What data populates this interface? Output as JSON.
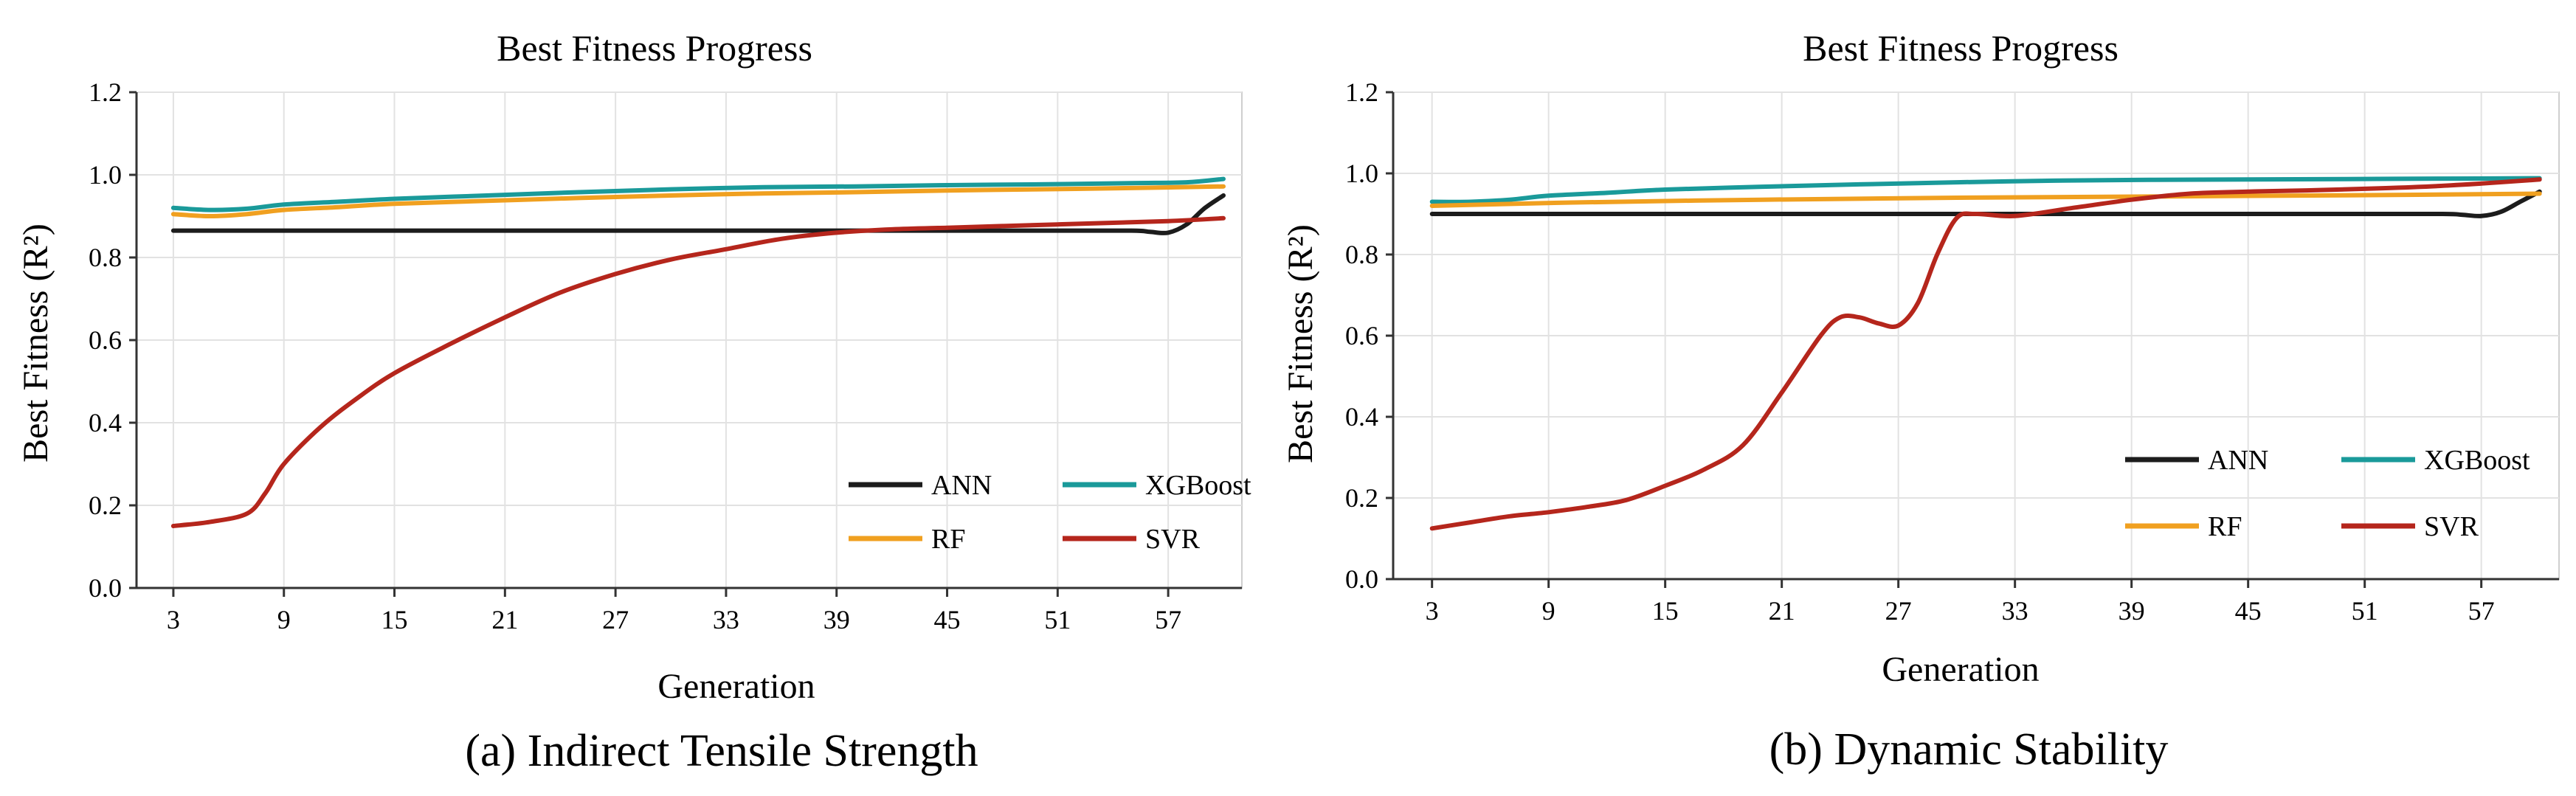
{
  "chart_data": [
    {
      "type": "line",
      "title": "Best Fitness Progress",
      "caption": "(a) Indirect Tensile Strength",
      "xlabel": "Generation",
      "ylabel": "Best Fitness (R²)",
      "xlim": [
        1,
        61
      ],
      "ylim": [
        0,
        1.2
      ],
      "xticks": [
        "3",
        "9",
        "15",
        "21",
        "27",
        "33",
        "39",
        "45",
        "51",
        "57"
      ],
      "yticks": [
        "0.0",
        "0.2",
        "0.4",
        "0.6",
        "0.8",
        "1.0",
        "1.2"
      ],
      "grid": true,
      "legend_position": "bottom-right",
      "series": [
        {
          "name": "ANN",
          "color": "#1c1c1c",
          "x": [
            3,
            10,
            20,
            30,
            40,
            50,
            55,
            56,
            57,
            58,
            59,
            60
          ],
          "y": [
            0.865,
            0.865,
            0.865,
            0.865,
            0.865,
            0.865,
            0.865,
            0.862,
            0.86,
            0.88,
            0.92,
            0.95
          ]
        },
        {
          "name": "XGBoost",
          "color": "#1a9a9a",
          "x": [
            3,
            5,
            7,
            9,
            12,
            15,
            20,
            25,
            30,
            35,
            40,
            45,
            50,
            55,
            58,
            60
          ],
          "y": [
            0.92,
            0.915,
            0.918,
            0.928,
            0.935,
            0.942,
            0.95,
            0.958,
            0.965,
            0.97,
            0.972,
            0.975,
            0.977,
            0.98,
            0.982,
            0.99
          ]
        },
        {
          "name": "RF",
          "color": "#f0a020",
          "x": [
            3,
            5,
            7,
            9,
            12,
            15,
            20,
            25,
            30,
            35,
            40,
            45,
            50,
            55,
            60
          ],
          "y": [
            0.905,
            0.9,
            0.905,
            0.915,
            0.922,
            0.93,
            0.937,
            0.944,
            0.95,
            0.955,
            0.958,
            0.962,
            0.965,
            0.968,
            0.972
          ]
        },
        {
          "name": "SVR",
          "color": "#b5261c",
          "x": [
            3,
            5,
            7,
            8,
            9,
            11,
            13,
            15,
            18,
            21,
            24,
            27,
            30,
            33,
            36,
            39,
            42,
            45,
            48,
            51,
            54,
            57,
            60
          ],
          "y": [
            0.15,
            0.16,
            0.18,
            0.23,
            0.3,
            0.39,
            0.46,
            0.52,
            0.59,
            0.655,
            0.715,
            0.76,
            0.795,
            0.82,
            0.845,
            0.86,
            0.868,
            0.872,
            0.876,
            0.88,
            0.884,
            0.888,
            0.895
          ]
        }
      ]
    },
    {
      "type": "line",
      "title": "Best Fitness Progress",
      "caption": "(b) Dynamic Stability",
      "xlabel": "Generation",
      "ylabel": "Best Fitness (R²)",
      "xlim": [
        1,
        61
      ],
      "ylim": [
        0,
        1.2
      ],
      "xticks": [
        "3",
        "9",
        "15",
        "21",
        "27",
        "33",
        "39",
        "45",
        "51",
        "57"
      ],
      "yticks": [
        "0.0",
        "0.2",
        "0.4",
        "0.6",
        "0.8",
        "1.0",
        "1.2"
      ],
      "grid": true,
      "legend_position": "bottom-right",
      "series": [
        {
          "name": "ANN",
          "color": "#1c1c1c",
          "x": [
            3,
            10,
            20,
            30,
            40,
            50,
            55,
            56,
            57,
            58,
            59,
            60
          ],
          "y": [
            0.9,
            0.9,
            0.9,
            0.9,
            0.9,
            0.9,
            0.9,
            0.898,
            0.895,
            0.905,
            0.93,
            0.955
          ]
        },
        {
          "name": "XGBoost",
          "color": "#1a9a9a",
          "x": [
            3,
            5,
            7,
            9,
            12,
            15,
            20,
            25,
            30,
            35,
            40,
            45,
            50,
            55,
            60
          ],
          "y": [
            0.93,
            0.93,
            0.935,
            0.945,
            0.952,
            0.96,
            0.967,
            0.973,
            0.978,
            0.982,
            0.984,
            0.985,
            0.986,
            0.987,
            0.988
          ]
        },
        {
          "name": "RF",
          "color": "#f0a020",
          "x": [
            3,
            10,
            20,
            30,
            40,
            50,
            60
          ],
          "y": [
            0.92,
            0.928,
            0.935,
            0.94,
            0.943,
            0.946,
            0.95
          ]
        },
        {
          "name": "SVR",
          "color": "#b5261c",
          "x": [
            3,
            5,
            7,
            9,
            11,
            13,
            15,
            17,
            19,
            21,
            23,
            24,
            25,
            26,
            27,
            28,
            29,
            30,
            31,
            33,
            36,
            39,
            42,
            45,
            48,
            51,
            54,
            57,
            60
          ],
          "y": [
            0.125,
            0.14,
            0.155,
            0.165,
            0.178,
            0.195,
            0.23,
            0.27,
            0.33,
            0.46,
            0.6,
            0.645,
            0.645,
            0.63,
            0.625,
            0.68,
            0.8,
            0.89,
            0.9,
            0.895,
            0.915,
            0.935,
            0.95,
            0.955,
            0.958,
            0.962,
            0.967,
            0.975,
            0.985
          ]
        }
      ]
    }
  ]
}
